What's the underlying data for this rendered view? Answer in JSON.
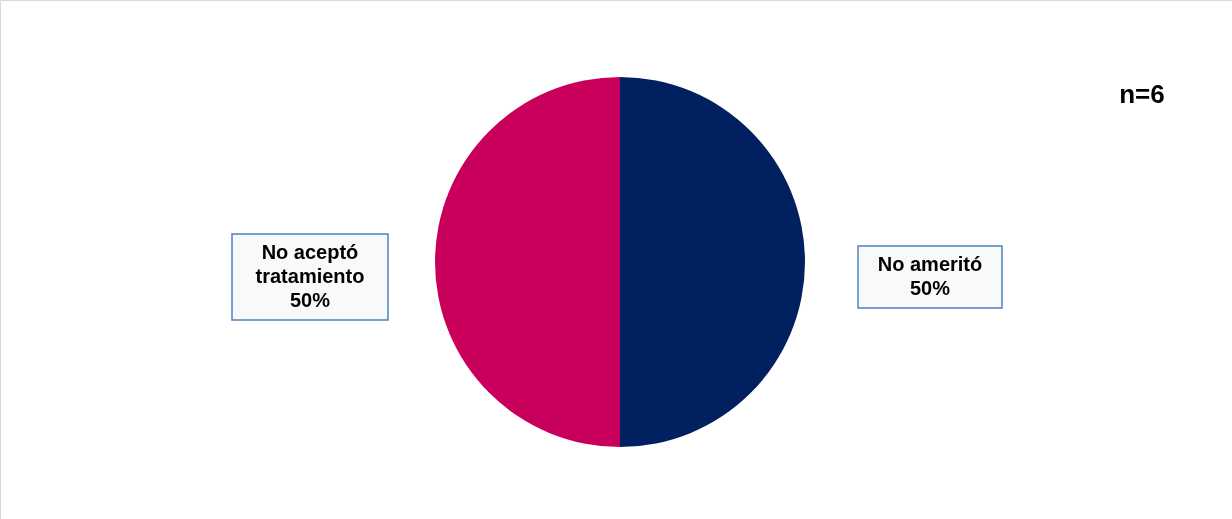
{
  "chart_data": {
    "type": "pie",
    "categories": [
      "No ameritó",
      "No aceptó tratamiento"
    ],
    "values": [
      50,
      50
    ],
    "colors": [
      "#002060",
      "#c9005b"
    ],
    "value_labels": [
      "50%",
      "50%"
    ],
    "annotations": [
      "n=6"
    ]
  }
}
